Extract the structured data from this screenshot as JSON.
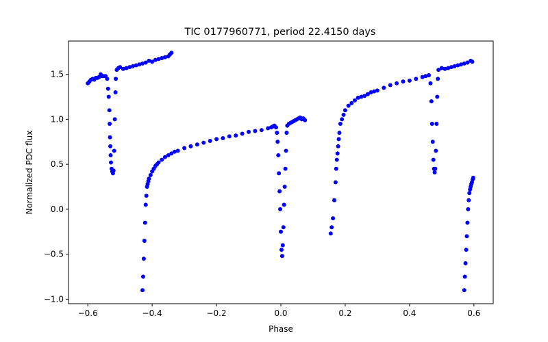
{
  "chart_data": {
    "type": "scatter",
    "title": "TIC 0177960771, period 22.4150 days",
    "xlabel": "Phase",
    "ylabel": "Normalized PDC flux",
    "xlim": [
      -0.66,
      0.66
    ],
    "ylim": [
      -1.05,
      1.87
    ],
    "xticks": [
      -0.6,
      -0.4,
      -0.2,
      0.0,
      0.2,
      0.4,
      0.6
    ],
    "xtick_labels": [
      "−0.6",
      "−0.4",
      "−0.2",
      "0.0",
      "0.2",
      "0.4",
      "0.6"
    ],
    "yticks": [
      -1.0,
      -0.5,
      0.0,
      0.5,
      1.0,
      1.5
    ],
    "ytick_labels": [
      "−1.0",
      "−0.5",
      "0.0",
      "0.5",
      "1.0",
      "1.5"
    ],
    "grid": false,
    "marker_color": "#0000ff",
    "series": [
      {
        "x": [
          -0.6,
          -0.595,
          -0.59,
          -0.585,
          -0.58,
          -0.575,
          -0.57,
          -0.565,
          -0.56,
          -0.555,
          -0.55,
          -0.545,
          -0.54,
          -0.537,
          -0.535,
          -0.533,
          -0.532,
          -0.531,
          -0.53,
          -0.529,
          -0.528,
          -0.526,
          -0.524,
          -0.522,
          -0.52,
          -0.518,
          -0.516,
          -0.514,
          -0.513,
          -0.51,
          -0.505,
          -0.5,
          -0.49,
          -0.48,
          -0.47,
          -0.46,
          -0.45,
          -0.44,
          -0.43,
          -0.42,
          -0.41,
          -0.4,
          -0.39,
          -0.38,
          -0.37,
          -0.36,
          -0.35,
          -0.345,
          -0.34,
          -0.43,
          -0.428,
          -0.426,
          -0.424,
          -0.422,
          -0.42,
          -0.418,
          -0.416,
          -0.414,
          -0.412,
          -0.41,
          -0.405,
          -0.4,
          -0.395,
          -0.39,
          -0.385,
          -0.38,
          -0.37,
          -0.36,
          -0.35,
          -0.34,
          -0.33,
          -0.32,
          -0.3,
          -0.28,
          -0.26,
          -0.24,
          -0.22,
          -0.2,
          -0.18,
          -0.16,
          -0.14,
          -0.12,
          -0.1,
          -0.08,
          -0.06,
          -0.04,
          -0.03,
          -0.025,
          -0.02,
          -0.015,
          -0.012,
          -0.01,
          -0.008,
          -0.006,
          -0.004,
          -0.002,
          0.0,
          0.002,
          0.004,
          0.006,
          0.008,
          0.01,
          0.012,
          0.014,
          0.016,
          0.018,
          0.02,
          0.025,
          0.03,
          0.035,
          0.04,
          0.045,
          0.05,
          0.055,
          0.06,
          0.065,
          0.07,
          0.075,
          0.155,
          0.158,
          0.162,
          0.166,
          0.17,
          0.172,
          0.174,
          0.176,
          0.178,
          0.18,
          0.182,
          0.185,
          0.19,
          0.195,
          0.2,
          0.21,
          0.22,
          0.23,
          0.24,
          0.25,
          0.26,
          0.27,
          0.28,
          0.29,
          0.3,
          0.32,
          0.34,
          0.36,
          0.38,
          0.4,
          0.42,
          0.44,
          0.45,
          0.46,
          0.465,
          0.468,
          0.47,
          0.472,
          0.474,
          0.476,
          0.478,
          0.48,
          0.482,
          0.484,
          0.486,
          0.488,
          0.49,
          0.5,
          0.51,
          0.52,
          0.53,
          0.54,
          0.55,
          0.56,
          0.57,
          0.58,
          0.59,
          0.595,
          0.57,
          0.572,
          0.574,
          0.576,
          0.578,
          0.58,
          0.582,
          0.584,
          0.586,
          0.588,
          0.59,
          0.592,
          0.594,
          0.596,
          0.598
        ],
        "y": [
          1.4,
          1.42,
          1.44,
          1.45,
          1.44,
          1.46,
          1.46,
          1.47,
          1.5,
          1.48,
          1.48,
          1.48,
          1.45,
          1.34,
          1.25,
          1.1,
          0.95,
          0.8,
          0.7,
          0.6,
          0.52,
          0.45,
          0.42,
          0.4,
          0.43,
          0.65,
          1.0,
          1.3,
          1.45,
          1.55,
          1.57,
          1.58,
          1.56,
          1.57,
          1.58,
          1.59,
          1.6,
          1.61,
          1.62,
          1.63,
          1.65,
          1.64,
          1.66,
          1.67,
          1.68,
          1.69,
          1.7,
          1.72,
          1.74,
          -0.9,
          -0.75,
          -0.55,
          -0.35,
          -0.15,
          0.05,
          0.15,
          0.25,
          0.28,
          0.31,
          0.34,
          0.38,
          0.42,
          0.45,
          0.48,
          0.5,
          0.52,
          0.55,
          0.58,
          0.6,
          0.62,
          0.64,
          0.65,
          0.68,
          0.7,
          0.72,
          0.74,
          0.76,
          0.78,
          0.79,
          0.81,
          0.82,
          0.84,
          0.86,
          0.87,
          0.88,
          0.9,
          0.91,
          0.92,
          0.93,
          0.91,
          0.85,
          0.75,
          0.6,
          0.4,
          0.2,
          0.0,
          -0.25,
          -0.45,
          -0.52,
          -0.4,
          -0.2,
          0.05,
          0.25,
          0.45,
          0.65,
          0.85,
          0.93,
          0.95,
          0.96,
          0.97,
          0.98,
          0.99,
          1.0,
          1.01,
          1.02,
          1.0,
          1.01,
          0.99,
          -0.27,
          -0.2,
          -0.1,
          0.1,
          0.3,
          0.45,
          0.55,
          0.62,
          0.7,
          0.78,
          0.85,
          0.95,
          1.0,
          1.05,
          1.1,
          1.15,
          1.18,
          1.21,
          1.24,
          1.25,
          1.26,
          1.28,
          1.3,
          1.31,
          1.32,
          1.35,
          1.38,
          1.4,
          1.42,
          1.43,
          1.45,
          1.47,
          1.48,
          1.49,
          1.4,
          1.2,
          0.95,
          0.75,
          0.55,
          0.45,
          0.41,
          0.45,
          0.65,
          0.95,
          1.25,
          1.45,
          1.55,
          1.57,
          1.56,
          1.57,
          1.58,
          1.59,
          1.6,
          1.61,
          1.62,
          1.63,
          1.65,
          1.64,
          -0.9,
          -0.75,
          -0.6,
          -0.45,
          -0.3,
          -0.15,
          0.0,
          0.1,
          0.18,
          0.22,
          0.25,
          0.28,
          0.3,
          0.33,
          0.35
        ]
      }
    ]
  }
}
